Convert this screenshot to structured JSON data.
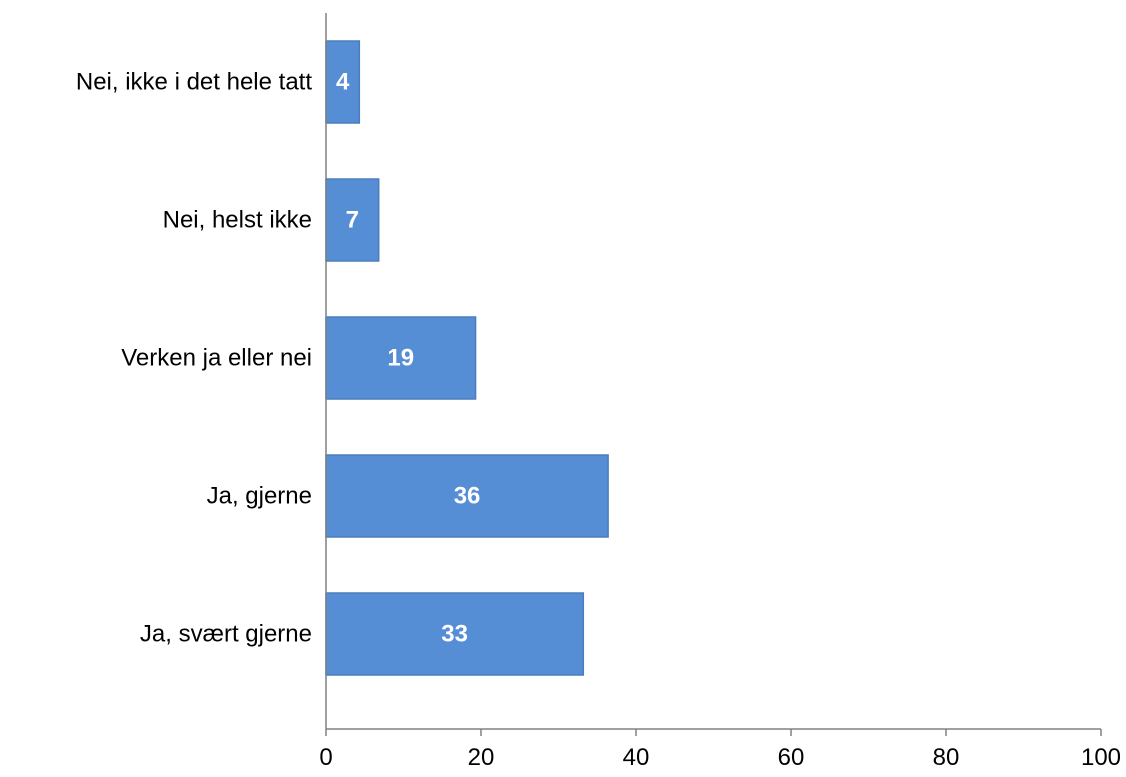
{
  "chart_data": {
    "type": "bar",
    "orientation": "horizontal",
    "title": "",
    "xlabel": "",
    "ylabel": "",
    "categories": [
      "Nei, ikke i det hele tatt",
      "Nei, helst ikke",
      "Verken ja eller nei",
      "Ja, gjerne",
      "Ja, svært gjerne"
    ],
    "values": [
      4.3,
      6.8,
      19.3,
      36.4,
      33.2
    ],
    "data_labels": [
      "4",
      "7",
      "19",
      "36",
      "33"
    ],
    "xlim": [
      0,
      100
    ],
    "x_ticks": [
      0,
      20,
      40,
      60,
      80,
      100
    ],
    "x_tick_labels": [
      "0",
      "20",
      "40",
      "60",
      "80",
      "100"
    ],
    "grid": false,
    "legend": "none",
    "bar_color": "#558ED5",
    "bar_border_color": "#4A7EBB",
    "data_label_color": "#FFFFFF"
  }
}
